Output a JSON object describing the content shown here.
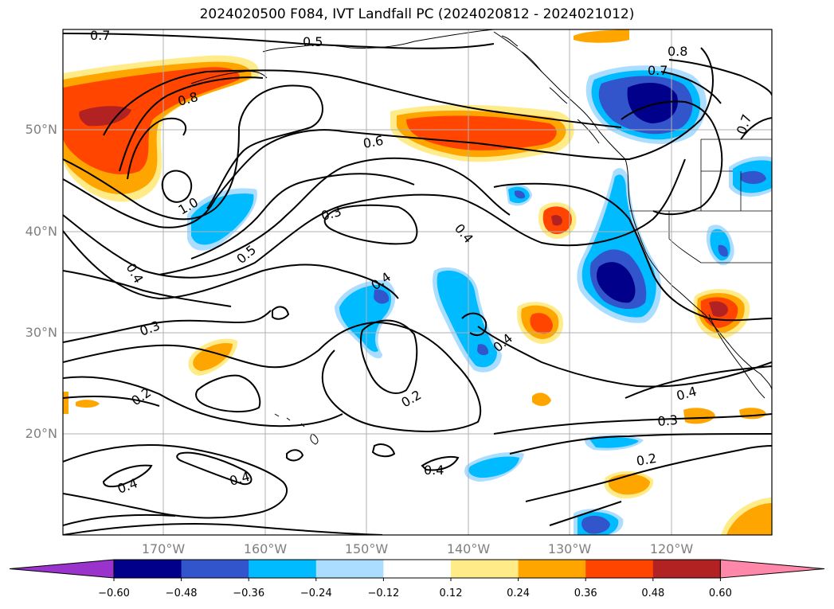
{
  "title": "2024020500 F084, IVT Landfall PC (2024020812 - 2024021012)",
  "lat_labels": [
    "50°N",
    "40°N",
    "30°N",
    "20°N"
  ],
  "lon_labels": [
    "170°W",
    "160°W",
    "150°W",
    "140°W",
    "130°W",
    "120°W"
  ],
  "contour_labels": [
    "0.7",
    "0.5",
    "0.8",
    "0.8",
    "0.7",
    "0.7",
    "0.6",
    "1.0",
    "0.3",
    "0.4",
    "0.5",
    "0.4",
    "0.4",
    "0.3",
    "0.2",
    "0.4",
    "0.2",
    "0.4",
    "0.4",
    "0.4",
    "0.3",
    "0.2",
    "0.4"
  ],
  "colorbar": {
    "ticks": [
      "−0.60",
      "−0.48",
      "−0.36",
      "−0.24",
      "−0.12",
      "0.12",
      "0.24",
      "0.36",
      "0.48",
      "0.60"
    ],
    "colors": [
      "#9933cc",
      "#00008b",
      "#3355cc",
      "#00bbff",
      "#aaddff",
      "#ffffff",
      "#ffeb88",
      "#ffa500",
      "#ff4500",
      "#b22222",
      "#ff88aa"
    ]
  }
}
